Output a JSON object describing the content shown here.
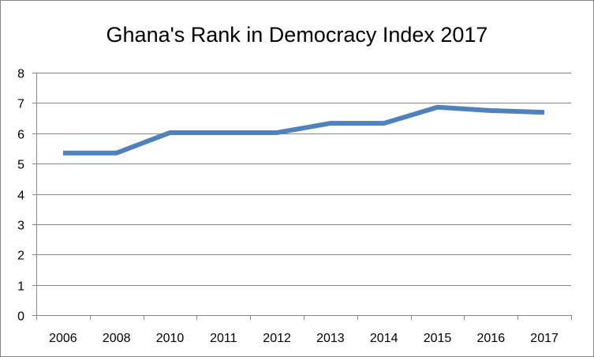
{
  "chart_data": {
    "type": "line",
    "title": "Ghana's Rank in Democracy Index 2017",
    "xlabel": "",
    "ylabel": "",
    "categories": [
      "2006",
      "2008",
      "2010",
      "2011",
      "2012",
      "2013",
      "2014",
      "2015",
      "2016",
      "2017"
    ],
    "series": [
      {
        "values": [
          5.35,
          5.35,
          6.02,
          6.02,
          6.02,
          6.33,
          6.33,
          6.86,
          6.75,
          6.69
        ],
        "color": "#4f81bd"
      }
    ],
    "ylim": [
      0,
      8
    ],
    "yticks": [
      "0",
      "1",
      "2",
      "3",
      "4",
      "5",
      "6",
      "7",
      "8"
    ],
    "grid": true,
    "legend": "none"
  }
}
